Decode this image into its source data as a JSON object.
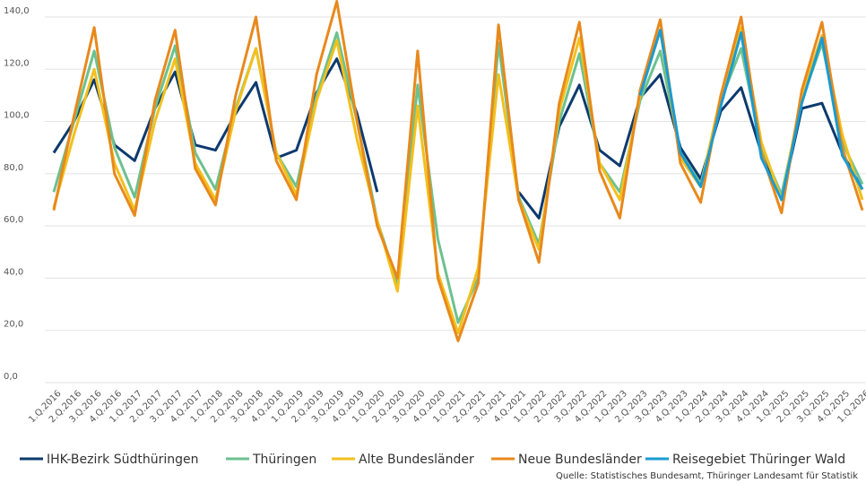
{
  "chart_data": {
    "type": "line",
    "categories": [
      "1.Q.2016",
      "2.Q.2016",
      "3.Q.2016",
      "4.Q.2016",
      "1.Q.2017",
      "2.Q.2017",
      "3.Q.2017",
      "4.Q.2017",
      "1.Q.2018",
      "2.Q.2018",
      "3.Q.2018",
      "4.Q.2018",
      "1.Q.2019",
      "2.Q.2019",
      "3.Q.2019",
      "4.Q.2019",
      "1.Q.2020",
      "2.Q.2020",
      "3.Q.2020",
      "4.Q.2020",
      "1.Q.2021",
      "2.Q.2021",
      "3.Q.2021",
      "4.Q.2021",
      "1.Q.2022",
      "2.Q.2022",
      "3.Q.2022",
      "4.Q.2022",
      "1.Q.2023",
      "2.Q.2023",
      "3.Q.2023",
      "4.Q.2023",
      "1.Q.2024",
      "2.Q.2024",
      "3.Q.2024",
      "4.Q.2024",
      "1.Q.2025",
      "2.Q.2025",
      "3.Q.2025",
      "4.Q.2025",
      "1.Q.2026"
    ],
    "series": [
      {
        "name": "IHK-Bezirk Südthüringen",
        "color": "#0d3a6e",
        "values": [
          88,
          100,
          116,
          91,
          85,
          105,
          119,
          91,
          89,
          103,
          115,
          86,
          89,
          111,
          124,
          103,
          73,
          null,
          null,
          null,
          null,
          null,
          null,
          73,
          63,
          98,
          114,
          89,
          83,
          109,
          118,
          90,
          78,
          104,
          113,
          88,
          70,
          105,
          107,
          88,
          74
        ]
      },
      {
        "name": "Thüringen",
        "color": "#6cc18f",
        "values": [
          73,
          100,
          127,
          90,
          71,
          105,
          129,
          88,
          74,
          105,
          128,
          88,
          75,
          110,
          134,
          100,
          62,
          38,
          114,
          55,
          23,
          40,
          130,
          71,
          53,
          100,
          126,
          84,
          73,
          108,
          127,
          88,
          76,
          108,
          128,
          90,
          72,
          108,
          130,
          92,
          76
        ]
      },
      {
        "name": "Alte Bundesländer",
        "color": "#f3c01c",
        "values": [
          67,
          95,
          120,
          84,
          66,
          100,
          124,
          84,
          70,
          104,
          128,
          88,
          72,
          108,
          131,
          93,
          62,
          35,
          106,
          42,
          19,
          44,
          118,
          70,
          51,
          104,
          132,
          84,
          70,
          110,
          135,
          86,
          75,
          110,
          136,
          92,
          70,
          110,
          133,
          95,
          70
        ]
      },
      {
        "name": "Neue Bundesländer",
        "color": "#e8891c",
        "values": [
          66,
          102,
          136,
          80,
          64,
          108,
          135,
          82,
          68,
          110,
          140,
          85,
          70,
          118,
          146,
          100,
          60,
          40,
          127,
          40,
          16,
          38,
          137,
          70,
          46,
          107,
          138,
          81,
          63,
          112,
          139,
          84,
          69,
          110,
          140,
          88,
          65,
          112,
          138,
          90,
          66
        ]
      },
      {
        "name": "Reisegebiet Thüringer Wald",
        "color": "#1a9bd1",
        "values": [
          null,
          null,
          null,
          null,
          null,
          null,
          null,
          null,
          null,
          null,
          null,
          null,
          null,
          null,
          null,
          null,
          null,
          null,
          null,
          null,
          null,
          null,
          null,
          null,
          null,
          null,
          null,
          null,
          null,
          110,
          135,
          88,
          75,
          106,
          134,
          86,
          70,
          107,
          132,
          87,
          74
        ]
      }
    ],
    "ylim": [
      0,
      140
    ],
    "yticks": [
      {
        "value": 0,
        "label": "0,0"
      },
      {
        "value": 20,
        "label": "20,0"
      },
      {
        "value": 40,
        "label": "40,0"
      },
      {
        "value": 60,
        "label": "60,0"
      },
      {
        "value": 80,
        "label": "80,0"
      },
      {
        "value": 100,
        "label": "100,0"
      },
      {
        "value": 120,
        "label": "120,0"
      },
      {
        "value": 140,
        "label": "140,0"
      }
    ],
    "grid": true,
    "legend": "bottom",
    "source": "Quelle: Statistisches Bundesamt, Thüringer Landesamt für Statistik"
  }
}
